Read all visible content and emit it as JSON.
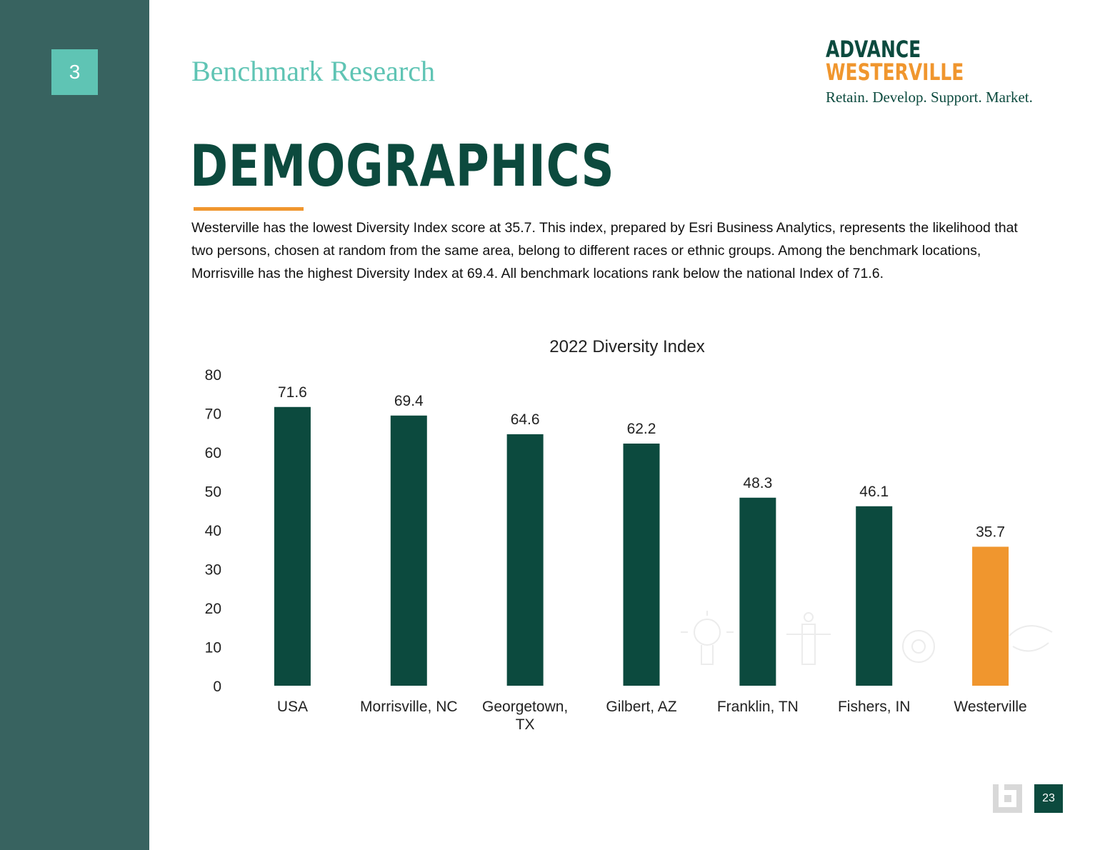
{
  "sidebar": {
    "section_number": "3"
  },
  "header": {
    "section_title": "Benchmark Research",
    "logo_line1": "ADVANCE",
    "logo_line2": "WESTERVILLE",
    "tagline": "Retain. Develop. Support. Market."
  },
  "main": {
    "heading": "DEMOGRAPHICS",
    "body": "Westerville has the lowest Diversity Index score at 35.7. This index, prepared by Esri Business Analytics, represents the likelihood that two persons, chosen at random from the same area, belong to different races or ethnic groups. Among the benchmark locations, Morrisville has the highest Diversity Index at 69.4. All benchmark locations rank below the national Index of 71.6."
  },
  "footer": {
    "page_number": "23"
  },
  "colors": {
    "sidebar": "#386360",
    "accent_teal": "#5fc4b4",
    "dark_green": "#0c4a3e",
    "orange": "#f0962e"
  },
  "chart_data": {
    "type": "bar",
    "title": "2022 Diversity Index",
    "categories": [
      "USA",
      "Morrisville, NC",
      "Georgetown, TX",
      "Gilbert, AZ",
      "Franklin, TN",
      "Fishers, IN",
      "Westerville"
    ],
    "category_lines": [
      [
        "USA"
      ],
      [
        "Morrisville, NC"
      ],
      [
        "Georgetown,",
        "TX"
      ],
      [
        "Gilbert, AZ"
      ],
      [
        "Franklin, TN"
      ],
      [
        "Fishers, IN"
      ],
      [
        "Westerville"
      ]
    ],
    "values": [
      71.6,
      69.4,
      64.6,
      62.2,
      48.3,
      46.1,
      35.7
    ],
    "value_labels": [
      "71.6",
      "69.4",
      "64.6",
      "62.2",
      "48.3",
      "46.1",
      "35.7"
    ],
    "bar_colors": [
      "#0c4a3e",
      "#0c4a3e",
      "#0c4a3e",
      "#0c4a3e",
      "#0c4a3e",
      "#0c4a3e",
      "#f0962e"
    ],
    "ylim": [
      0,
      80
    ],
    "yticks": [
      0,
      10,
      20,
      30,
      40,
      50,
      60,
      70,
      80
    ],
    "xlabel": "",
    "ylabel": "",
    "grid": false,
    "legend": "none"
  }
}
